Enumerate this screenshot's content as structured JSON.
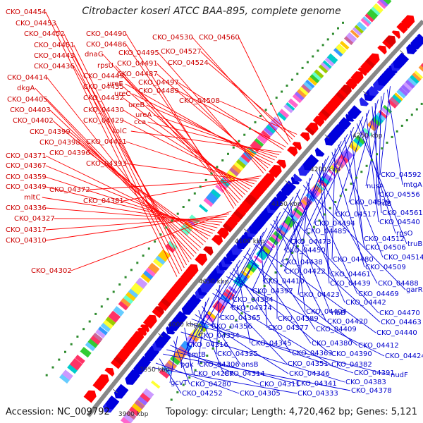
{
  "title": "Citrobacter koseri ATCC BAA-895, complete genome",
  "footer": {
    "accession": "Accession: NC_009792",
    "stats": "Topology: circular; Length: 4,720,462 bp; Genes: 5,121"
  },
  "colors": {
    "forward": "#ff0000",
    "reverse": "#0000dd",
    "backbone": "#888888",
    "tick": "#2e8b2e",
    "label_forward": "#cc0000",
    "label_reverse": "#0000cc"
  },
  "scale_labels": [
    "3900 kbp",
    "3950 kbp",
    "4000 kbp",
    "4050 kbp",
    "4100 kbp",
    "4150 kbp",
    "4200 kbp",
    "4250 kbp"
  ],
  "left_labels": [
    "CKO_04454",
    "CKO_04453",
    "CKO_04452",
    "CKO_04451",
    "CKO_04443",
    "CKO_04436",
    "CKO_04414",
    "dkgA",
    "CKO_04405",
    "CKO_04403",
    "CKO_04402",
    "CKO_04399",
    "CKO_04398",
    "CKO_04396",
    "CKO_04371",
    "CKO_04367",
    "CKO_04359",
    "CKO_04349",
    "mltC",
    "CKO_04336",
    "CKO_04327",
    "CKO_04317",
    "CKO_04310",
    "CKO_04302",
    "CKO_04490",
    "CKO_04486",
    "dnaG",
    "rpsU",
    "CKO_04449",
    "CKO_04435",
    "CKO_04432",
    "CKO_04430",
    "CKO_04429",
    "CKO_04421",
    "CKO_04393",
    "CKO_04372",
    "CKO_04381",
    "CKO_04495",
    "CKO_04491",
    "CKO_04487",
    "ureE",
    "ureC",
    "ureB",
    "ureA",
    "cca",
    "tolC",
    "CKO_04497",
    "CKO_04489",
    "CKO_04530",
    "CKO_04560",
    "CKO_04527",
    "CKO_04524",
    "CKO_04508"
  ],
  "right_labels": [
    "CKO_04592",
    "mtgA",
    "nusA",
    "CKO_04556",
    "CKO_04529",
    "infB",
    "CKO_04561",
    "CKO_04517",
    "CKO_04540",
    "CKO_04494",
    "rpsO",
    "truB",
    "CKO_04485",
    "CKO_04512",
    "CKO_04473",
    "CKO_04506",
    "CKO_04450",
    "CKO_04514",
    "CKO_04480",
    "CKO_04509",
    "CKO_04438",
    "CKO_04422",
    "CKO_04461",
    "CKO_04439",
    "CKO_04488",
    "CKO_04410",
    "CKO_04423",
    "CKO_04469",
    "garR",
    "CKO_04397",
    "CKO_04442",
    "CKO_04384",
    "CKO_04404",
    "ribB",
    "CKO_04470",
    "CKO_04374",
    "CKO_04389",
    "CKO_04420",
    "CKO_04463",
    "CKO_04365",
    "CKO_04356",
    "CKO_04377",
    "CKO_04409",
    "CKO_04440",
    "CKO_04334",
    "CKO_04380",
    "CKO_04412",
    "CKO_04316",
    "CKO_04345",
    "CKO_04363",
    "CKO_04390",
    "CKO_04424",
    "cmtB",
    "CKO_04325",
    "CKO_04351",
    "CKO_04382",
    "pgk",
    "CKO_04306",
    "ansB",
    "CKO_04314",
    "CKO_04346",
    "CKO_04391",
    "nudF",
    "CKO_04287",
    "CKO_04383",
    "gcvT",
    "CKO_04280",
    "CKO_04311",
    "CKO_04341",
    "CKO_04378",
    "CKO_04252",
    "CKO_04305",
    "CKO_04333"
  ]
}
